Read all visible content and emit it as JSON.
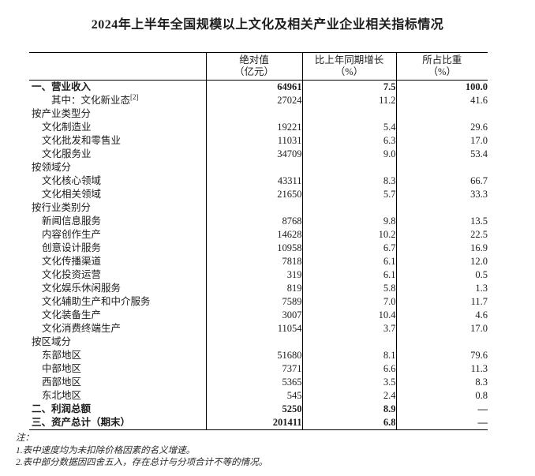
{
  "title": "2024年上半年全国规模以上文化及相关产业企业相关指标情况",
  "colors": {
    "background": "#ffffff",
    "text": "#1c1c1c",
    "table_border": "#000000"
  },
  "table": {
    "columns": [
      {
        "label": "绝对值",
        "unit": "（亿元）"
      },
      {
        "label": "比上年同期增长",
        "unit": "（%）"
      },
      {
        "label": "所占比重",
        "unit": "（%）"
      }
    ],
    "rows": [
      {
        "label": "一、营业收入",
        "sup": "",
        "indent": 0,
        "bold": true,
        "values": [
          "64961",
          "7.5",
          "100.0"
        ]
      },
      {
        "label": "其中：文化新业态",
        "sup": "[2]",
        "indent": 2,
        "bold": false,
        "values": [
          "27024",
          "11.2",
          "41.6"
        ]
      },
      {
        "label": "按产业类型分",
        "sup": "",
        "indent": 0,
        "bold": false,
        "values": [
          "",
          "",
          ""
        ]
      },
      {
        "label": "文化制造业",
        "sup": "",
        "indent": 1,
        "bold": false,
        "values": [
          "19221",
          "5.4",
          "29.6"
        ]
      },
      {
        "label": "文化批发和零售业",
        "sup": "",
        "indent": 1,
        "bold": false,
        "values": [
          "11031",
          "6.3",
          "17.0"
        ]
      },
      {
        "label": "文化服务业",
        "sup": "",
        "indent": 1,
        "bold": false,
        "values": [
          "34709",
          "9.0",
          "53.4"
        ]
      },
      {
        "label": "按领域分",
        "sup": "",
        "indent": 0,
        "bold": false,
        "values": [
          "",
          "",
          ""
        ]
      },
      {
        "label": "文化核心领域",
        "sup": "",
        "indent": 1,
        "bold": false,
        "values": [
          "43311",
          "8.3",
          "66.7"
        ]
      },
      {
        "label": "文化相关领域",
        "sup": "",
        "indent": 1,
        "bold": false,
        "values": [
          "21650",
          "5.7",
          "33.3"
        ]
      },
      {
        "label": "按行业类别分",
        "sup": "",
        "indent": 0,
        "bold": false,
        "values": [
          "",
          "",
          ""
        ]
      },
      {
        "label": "新闻信息服务",
        "sup": "",
        "indent": 1,
        "bold": false,
        "values": [
          "8768",
          "9.8",
          "13.5"
        ]
      },
      {
        "label": "内容创作生产",
        "sup": "",
        "indent": 1,
        "bold": false,
        "values": [
          "14628",
          "10.2",
          "22.5"
        ]
      },
      {
        "label": "创意设计服务",
        "sup": "",
        "indent": 1,
        "bold": false,
        "values": [
          "10958",
          "6.7",
          "16.9"
        ]
      },
      {
        "label": "文化传播渠道",
        "sup": "",
        "indent": 1,
        "bold": false,
        "values": [
          "7818",
          "6.1",
          "12.0"
        ]
      },
      {
        "label": "文化投资运营",
        "sup": "",
        "indent": 1,
        "bold": false,
        "values": [
          "319",
          "6.1",
          "0.5"
        ]
      },
      {
        "label": "文化娱乐休闲服务",
        "sup": "",
        "indent": 1,
        "bold": false,
        "values": [
          "819",
          "5.8",
          "1.3"
        ]
      },
      {
        "label": "文化辅助生产和中介服务",
        "sup": "",
        "indent": 1,
        "bold": false,
        "values": [
          "7589",
          "7.0",
          "11.7"
        ]
      },
      {
        "label": "文化装备生产",
        "sup": "",
        "indent": 1,
        "bold": false,
        "values": [
          "3007",
          "10.4",
          "4.6"
        ]
      },
      {
        "label": "文化消费终端生产",
        "sup": "",
        "indent": 1,
        "bold": false,
        "values": [
          "11054",
          "3.7",
          "17.0"
        ]
      },
      {
        "label": "按区域分",
        "sup": "",
        "indent": 0,
        "bold": false,
        "values": [
          "",
          "",
          ""
        ]
      },
      {
        "label": "东部地区",
        "sup": "",
        "indent": 1,
        "bold": false,
        "values": [
          "51680",
          "8.1",
          "79.6"
        ]
      },
      {
        "label": "中部地区",
        "sup": "",
        "indent": 1,
        "bold": false,
        "values": [
          "7371",
          "6.6",
          "11.3"
        ]
      },
      {
        "label": "西部地区",
        "sup": "",
        "indent": 1,
        "bold": false,
        "values": [
          "5365",
          "3.5",
          "8.3"
        ]
      },
      {
        "label": "东北地区",
        "sup": "",
        "indent": 1,
        "bold": false,
        "values": [
          "545",
          "2.4",
          "0.8"
        ]
      },
      {
        "label": "二、利润总额",
        "sup": "",
        "indent": 0,
        "bold": true,
        "values": [
          "5250",
          "8.9",
          "—"
        ]
      },
      {
        "label": "三、资产总计（期末）",
        "sup": "",
        "indent": 0,
        "bold": true,
        "values": [
          "201411",
          "6.8",
          "—"
        ]
      }
    ]
  },
  "notes": {
    "heading": "注：",
    "items": [
      "1.表中速度均为未扣除价格因素的名义增速。",
      "2.表中部分数据因四舍五入，存在总计与分项合计不等的情况。"
    ]
  }
}
